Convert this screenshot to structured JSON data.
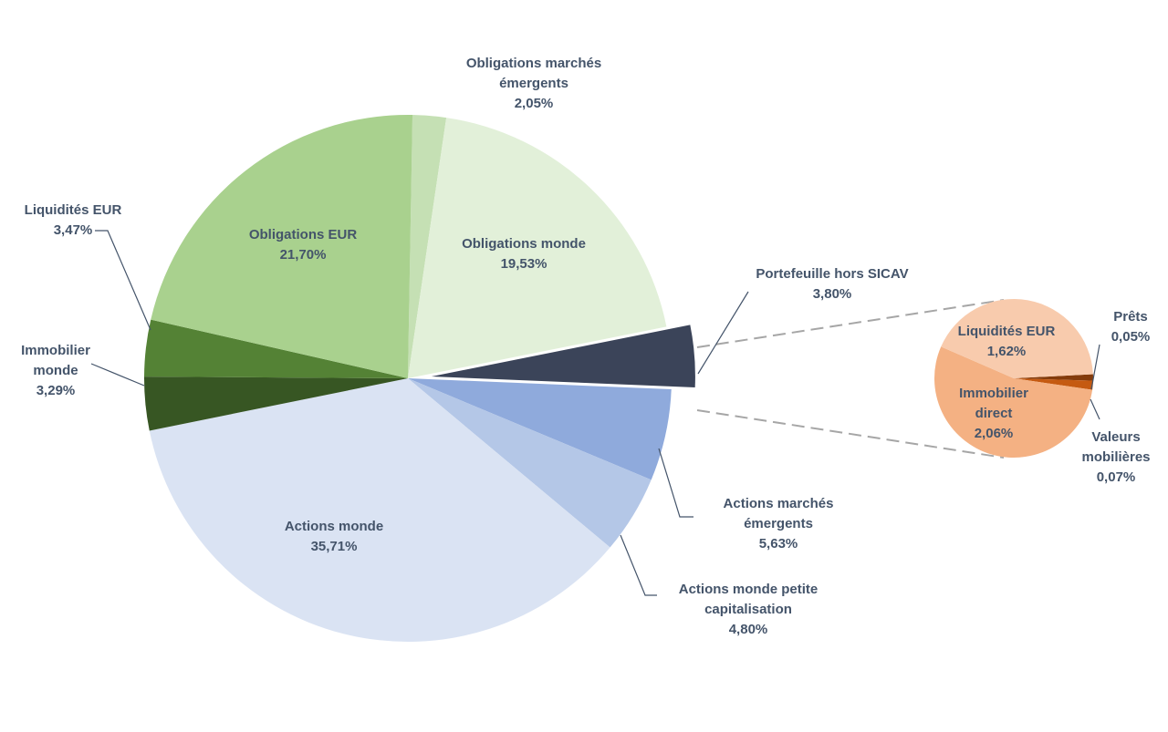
{
  "chart_data": {
    "type": "pie",
    "variant": "pie-of-pie",
    "slices": [
      {
        "name": "Obligations marchés émergents",
        "label": [
          "Obligations marchés",
          "émergents"
        ],
        "value_text": "2,05%",
        "value": 2.05,
        "color": "#c5e0b4"
      },
      {
        "name": "Obligations monde",
        "label": [
          "Obligations monde"
        ],
        "value_text": "19,53%",
        "value": 19.53,
        "color": "#e2f0d9"
      },
      {
        "name": "Portefeuille hors SICAV",
        "label": [
          "Portefeuille hors SICAV"
        ],
        "value_text": "3,80%",
        "value": 3.8,
        "color": "#3b4459"
      },
      {
        "name": "Actions marchés émergents",
        "label": [
          "Actions marchés",
          "émergents"
        ],
        "value_text": "5,63%",
        "value": 5.63,
        "color": "#8faadc"
      },
      {
        "name": "Actions monde petite capitalisation",
        "label": [
          "Actions monde petite",
          "capitalisation"
        ],
        "value_text": "4,80%",
        "value": 4.8,
        "color": "#b4c7e7"
      },
      {
        "name": "Actions monde",
        "label": [
          "Actions monde"
        ],
        "value_text": "35,71%",
        "value": 35.71,
        "color": "#dae3f3"
      },
      {
        "name": "Immobilier monde",
        "label": [
          "Immobilier",
          "monde"
        ],
        "value_text": "3,29%",
        "value": 3.29,
        "color": "#375623"
      },
      {
        "name": "Liquidités EUR",
        "label": [
          "Liquidités EUR"
        ],
        "value_text": "3,47%",
        "value": 3.47,
        "color": "#548235"
      },
      {
        "name": "Obligations EUR",
        "label": [
          "Obligations EUR"
        ],
        "value_text": "21,70%",
        "value": 21.7,
        "color": "#a9d18e"
      }
    ],
    "breakdown": {
      "of": "Portefeuille hors SICAV",
      "slices": [
        {
          "name": "Prêts",
          "label": [
            "Prêts"
          ],
          "value_text": "0,05%",
          "value": 0.05,
          "color": "#843c0c"
        },
        {
          "name": "Valeurs mobilières",
          "label": [
            "Valeurs",
            "mobilières"
          ],
          "value_text": "0,07%",
          "value": 0.07,
          "color": "#c55a11"
        },
        {
          "name": "Immobilier direct",
          "label": [
            "Immobilier",
            "direct"
          ],
          "value_text": "2,06%",
          "value": 2.06,
          "color": "#f4b183"
        },
        {
          "name": "Liquidités EUR",
          "label": [
            "Liquidités EUR"
          ],
          "value_text": "1,62%",
          "value": 1.62,
          "color": "#f8cbad"
        }
      ]
    },
    "legend": "none"
  }
}
